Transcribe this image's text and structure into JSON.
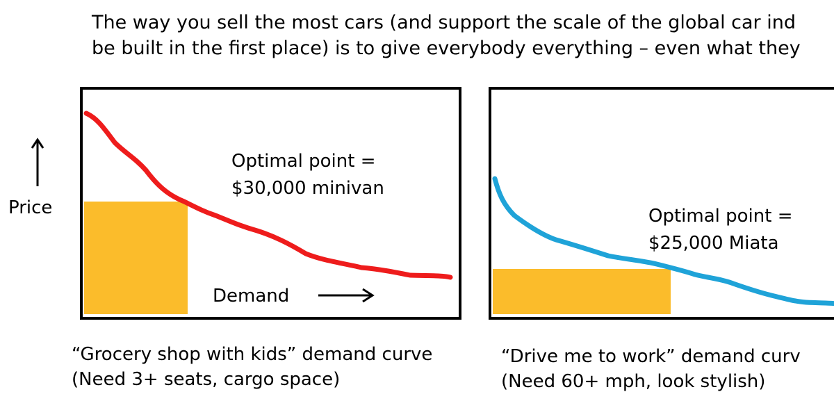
{
  "intro": {
    "line1": "The way you sell the most cars (and support the scale of the global car ind",
    "line2": "be built in the first place) is to give everybody everything – even what they"
  },
  "y_axis_label": "Price",
  "colors": {
    "frame": "#000000",
    "fill_highlight": "#fbbc2b",
    "curve_left": "#ee1c1c",
    "curve_right": "#1fa3d8"
  },
  "panels": [
    {
      "optimal_line1": "Optimal point =",
      "optimal_line2": "$30,000 minivan",
      "demand_label": "Demand",
      "caption_line1": "“Grocery shop with kids” demand curve",
      "caption_line2": "(Need 3+ seats, cargo space)"
    },
    {
      "optimal_line1": "Optimal point =",
      "optimal_line2": "$25,000 Miata",
      "caption_line1": "“Drive me to work” demand curv",
      "caption_line2": "(Need 60+ mph, look stylish)"
    }
  ]
}
